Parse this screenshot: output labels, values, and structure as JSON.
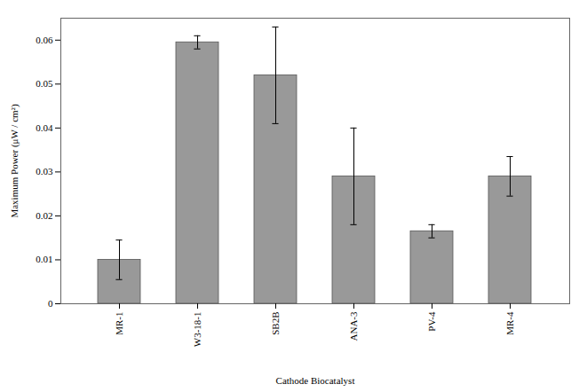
{
  "chart_data": {
    "type": "bar",
    "categories": [
      "MR-1",
      "W3-18-1",
      "SB2B",
      "ANA-3",
      "PV-4",
      "MR-4"
    ],
    "values": [
      0.01,
      0.0595,
      0.052,
      0.029,
      0.0165,
      0.029
    ],
    "errors": [
      0.0045,
      0.0015,
      0.011,
      0.011,
      0.0015,
      0.0045
    ],
    "color": "#999999",
    "xlabel": "Cathode Biocatalyst",
    "ylabel": "Maximum Power (μW / cm²)",
    "ylim": [
      0,
      0.065
    ],
    "yticks": [
      0,
      0.01,
      0.02,
      0.03,
      0.04,
      0.05,
      0.06
    ],
    "grid": false
  }
}
